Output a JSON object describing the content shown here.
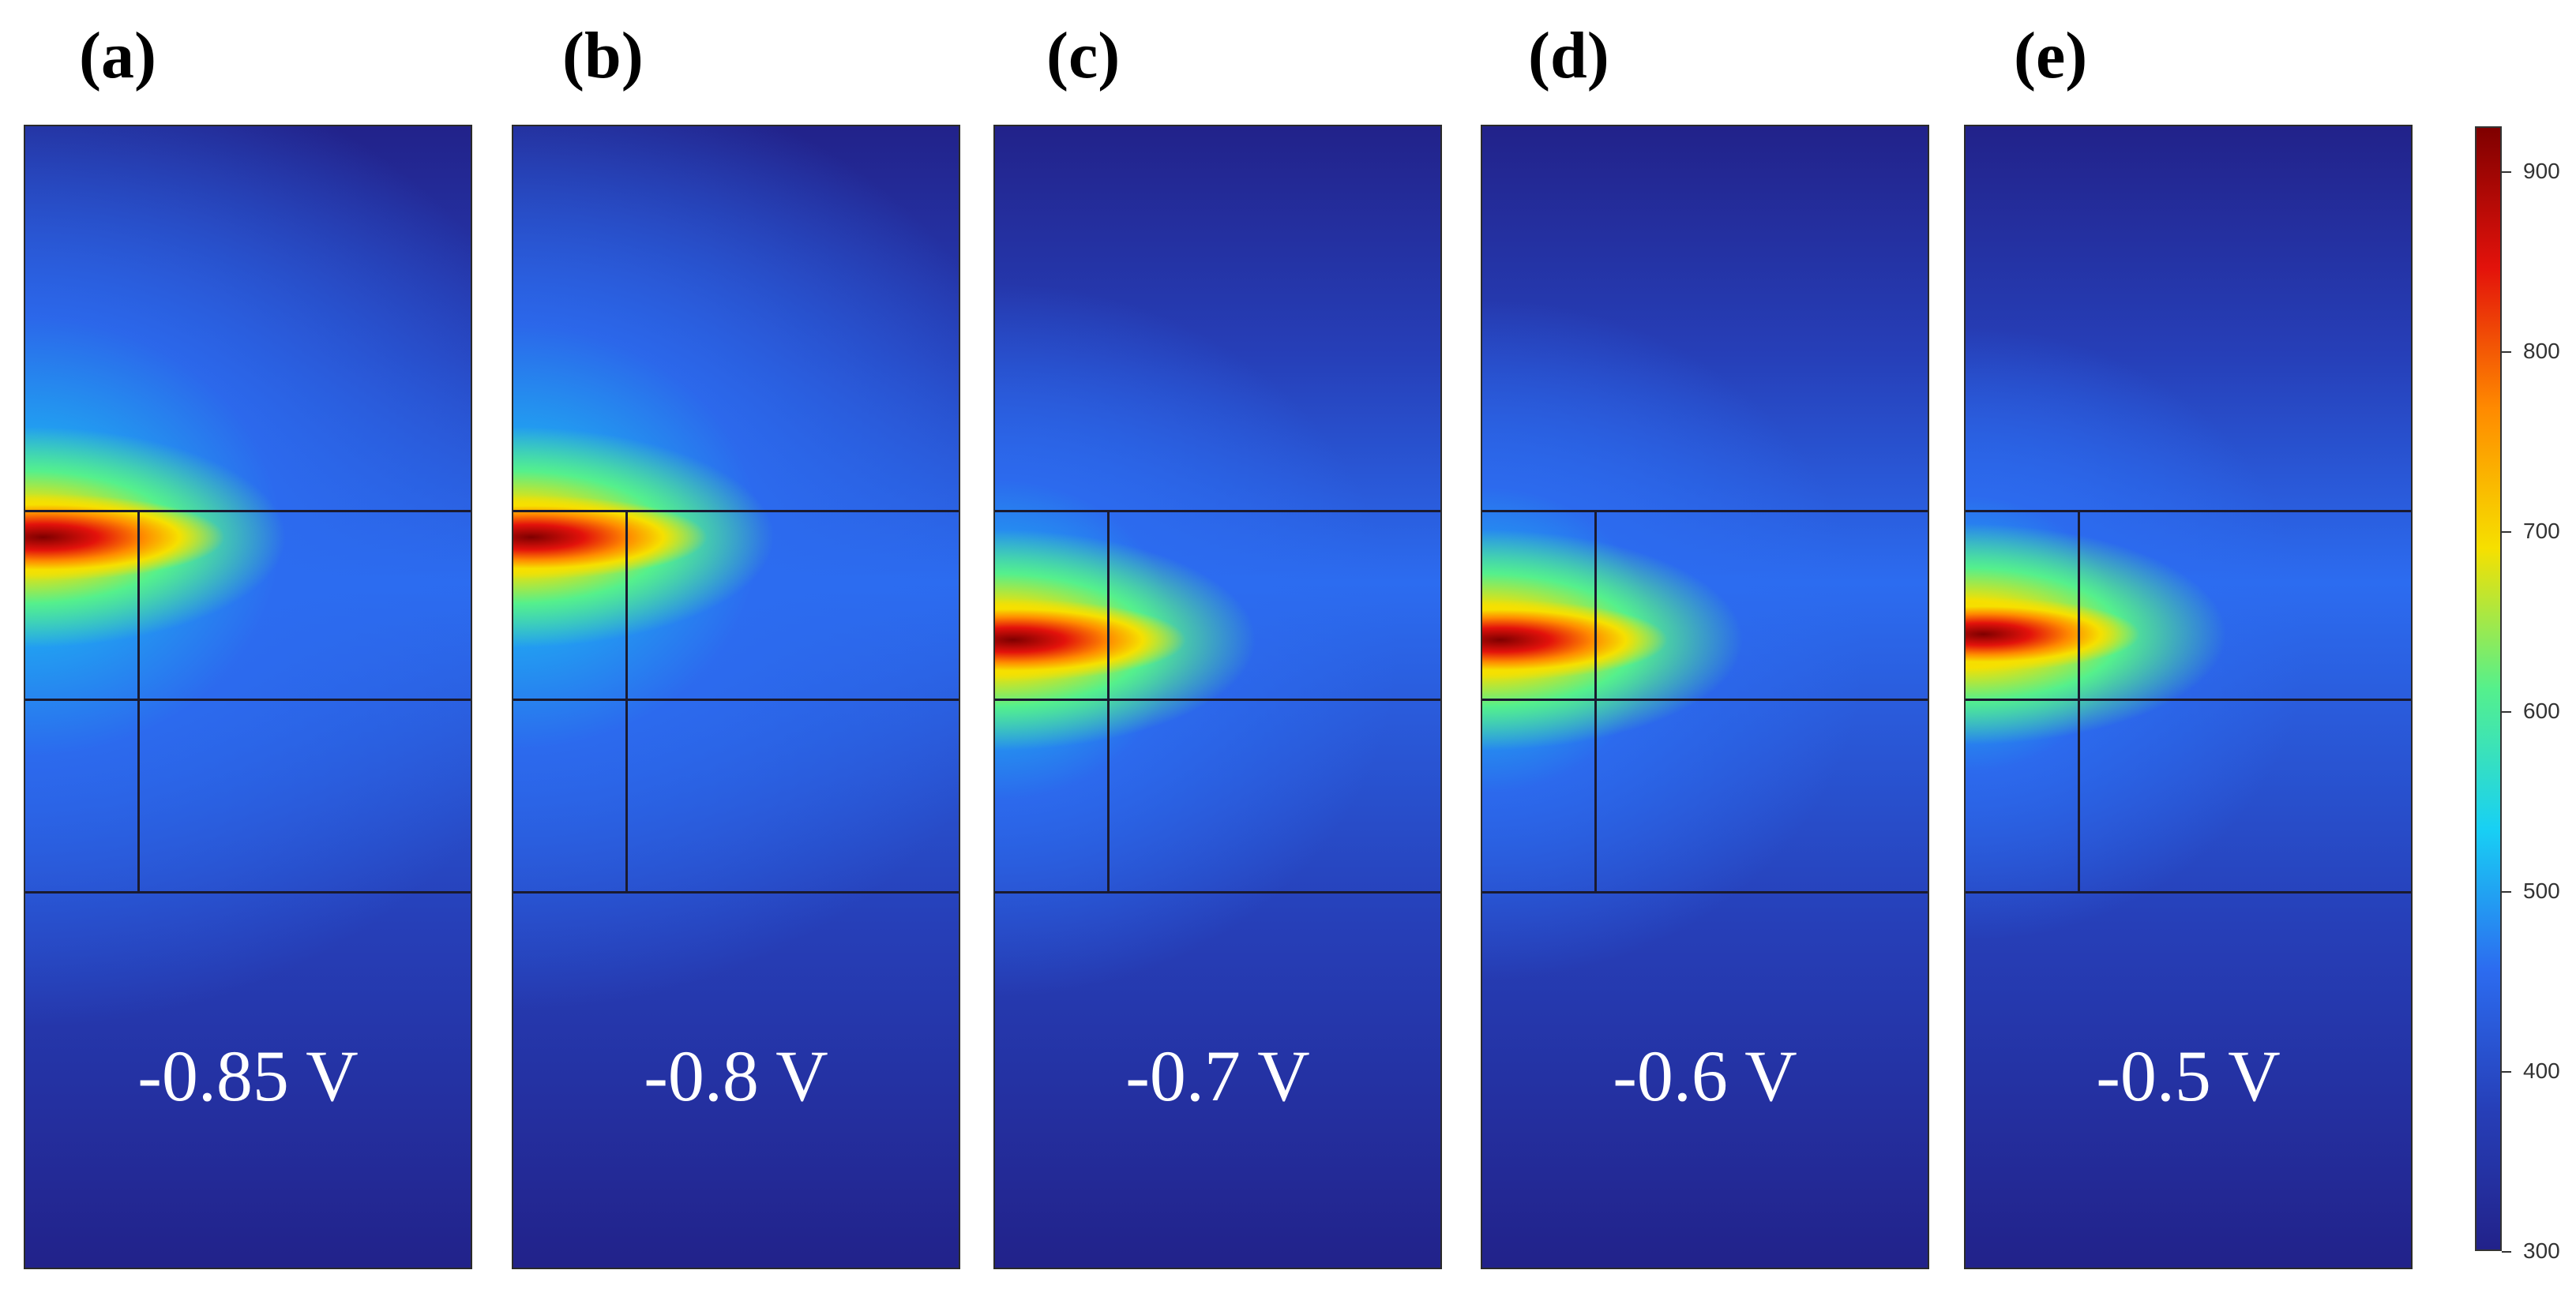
{
  "panels": [
    {
      "label": "(a)",
      "voltage": "-0.85 V",
      "hot_band": [
        0.33,
        0.39
      ],
      "core_intensity": 1.0,
      "diffuse": 1.0
    },
    {
      "label": "(b)",
      "voltage": "-0.8 V",
      "hot_band": [
        0.33,
        0.39
      ],
      "core_intensity": 0.97,
      "diffuse": 0.95
    },
    {
      "label": "(c)",
      "voltage": "-0.7 V",
      "hot_band": [
        0.42,
        0.48
      ],
      "core_intensity": 0.95,
      "diffuse": 0.6
    },
    {
      "label": "(d)",
      "voltage": "-0.6 V",
      "hot_band": [
        0.42,
        0.48
      ],
      "core_intensity": 0.92,
      "diffuse": 0.55
    },
    {
      "label": "(e)",
      "voltage": "-0.5 V",
      "hot_band": [
        0.42,
        0.47
      ],
      "core_intensity": 0.86,
      "diffuse": 0.45
    }
  ],
  "colorbar": {
    "min": 300,
    "max": 900,
    "ticks": [
      "900",
      "800",
      "700",
      "600",
      "500",
      "400",
      "300"
    ],
    "colors": [
      "#7f0000",
      "#e3120b",
      "#ff8a00",
      "#f6e000",
      "#55f08c",
      "#18d0f4",
      "#2c6cf0",
      "#263fb8",
      "#22228a"
    ]
  }
}
